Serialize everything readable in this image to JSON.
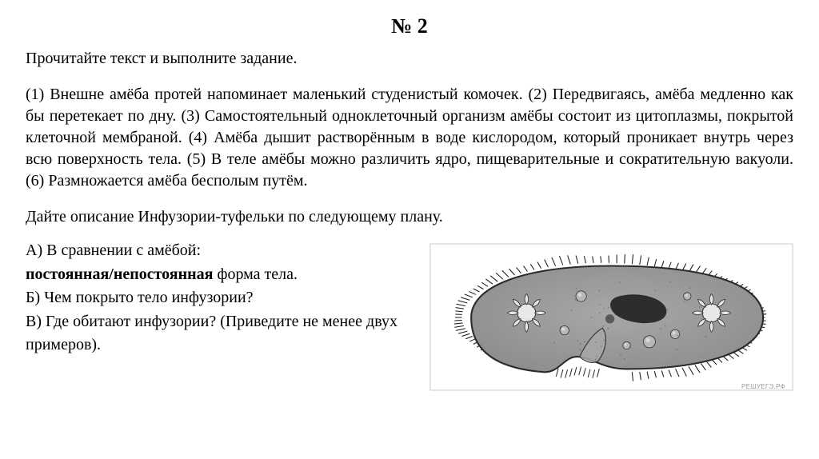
{
  "title": "№ 2",
  "instruction": "Прочитайте текст и выполните задание.",
  "passage": "(1) Внешне амёба протей напоминает маленький студенистый комочек. (2) Передвигаясь, амёба медленно как бы перетекает по дну. (3) Самостоятельный одноклеточный организм амёбы состоит из цитоплазмы, покрытой клеточной мембраной. (4) Амёба дышит растворённым в воде кислородом, который проникает внутрь через всю поверхность тела. (5) В теле амёбы можно различить ядро, пищеварительные и сократительную вакуоли. (6) Размножается амёба бесполым путём.",
  "plan_intro": "Дайте описание Инфузории-туфельки по следующему плану.",
  "q_a": "А) В сравнении с амёбой:",
  "q_a_bold": "постоянная/непостоянная",
  "q_a_tail": " форма тела.",
  "q_b": "Б) Чем покрыто тело инфузории?",
  "q_c": "В) Где обитают инфузории? (Приведите не менее двух примеров).",
  "watermark": "РЕШУЕГЭ.РФ",
  "figure": {
    "type": "diagram",
    "description": "paramecium cell grayscale",
    "colors": {
      "outline": "#2a2a2a",
      "body_fill": "#8e8e8e",
      "body_fill_light": "#a8a8a8",
      "macronucleus": "#2d2d2d",
      "vacuole_center": "#e8e8e8",
      "micronucleus": "#5a5a5a",
      "food_vacuole": "#b8b8b8",
      "cilia": "#1a1a1a",
      "border": "#c8c8c8"
    },
    "cilia_stroke_width": 1.1,
    "outline_stroke_width": 2.2
  }
}
